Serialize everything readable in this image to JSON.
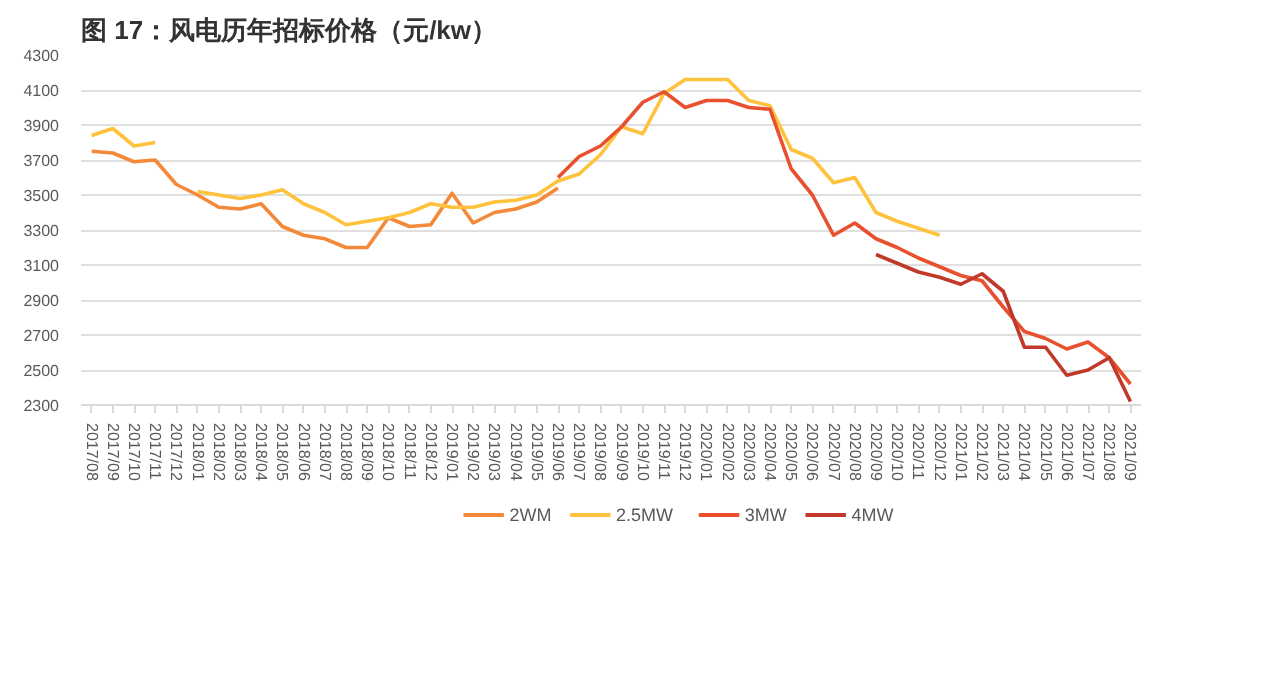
{
  "chart_data": {
    "type": "line",
    "title": "图 17：风电历年招标价格（元/kw）",
    "categories": [
      "2017/08",
      "2017/09",
      "2017/10",
      "2017/11",
      "2017/12",
      "2018/01",
      "2018/02",
      "2018/03",
      "2018/04",
      "2018/05",
      "2018/06",
      "2018/07",
      "2018/08",
      "2018/09",
      "2018/10",
      "2018/11",
      "2018/12",
      "2019/01",
      "2019/02",
      "2019/03",
      "2019/04",
      "2019/05",
      "2019/06",
      "2019/07",
      "2019/08",
      "2019/09",
      "2019/10",
      "2019/11",
      "2019/12",
      "2020/01",
      "2020/02",
      "2020/03",
      "2020/04",
      "2020/05",
      "2020/06",
      "2020/07",
      "2020/08",
      "2020/09",
      "2020/10",
      "2020/11",
      "2020/12",
      "2021/01",
      "2021/02",
      "2021/03",
      "2021/04",
      "2021/05",
      "2021/06",
      "2021/07",
      "2021/08",
      "2021/09"
    ],
    "series": [
      {
        "name": "2WM",
        "color": "#f4893a",
        "values": [
          3750,
          3740,
          3690,
          3700,
          3560,
          3500,
          3430,
          3420,
          3450,
          3320,
          3270,
          3250,
          3200,
          3200,
          3370,
          3320,
          3330,
          3510,
          3340,
          3400,
          3420,
          3460,
          3540,
          null,
          null,
          null,
          null,
          null,
          null,
          null,
          null,
          null,
          null,
          null,
          null,
          null,
          null,
          null,
          null,
          null,
          null,
          null,
          null,
          null,
          null,
          null,
          null,
          null,
          null,
          null
        ]
      },
      {
        "name": "2.5MW",
        "color": "#ffc23d",
        "values": [
          3840,
          3880,
          3780,
          3800,
          null,
          3520,
          3500,
          3480,
          3500,
          3530,
          3450,
          3400,
          3330,
          3350,
          3370,
          3400,
          3450,
          3430,
          3430,
          3460,
          3470,
          3500,
          3580,
          3620,
          3730,
          3890,
          3850,
          4080,
          4160,
          4160,
          4160,
          4040,
          4010,
          3760,
          3710,
          3570,
          3600,
          3400,
          3350,
          3310,
          3270,
          null,
          null,
          null,
          null,
          null,
          null,
          null,
          null,
          null
        ]
      },
      {
        "name": "3MW",
        "color": "#e8502e",
        "values": [
          null,
          null,
          null,
          null,
          null,
          null,
          null,
          null,
          null,
          null,
          null,
          null,
          null,
          null,
          null,
          null,
          null,
          null,
          null,
          null,
          null,
          null,
          3600,
          3720,
          3780,
          3890,
          4030,
          4090,
          4000,
          4040,
          4040,
          4000,
          3990,
          3650,
          3500,
          3270,
          3340,
          3250,
          3200,
          3140,
          3090,
          3040,
          3010,
          2860,
          2720,
          2680,
          2620,
          2660,
          2570,
          2420
        ]
      },
      {
        "name": "4MW",
        "color": "#c0392b",
        "values": [
          null,
          null,
          null,
          null,
          null,
          null,
          null,
          null,
          null,
          null,
          null,
          null,
          null,
          null,
          null,
          null,
          null,
          null,
          null,
          null,
          null,
          null,
          null,
          null,
          null,
          null,
          null,
          null,
          null,
          null,
          null,
          null,
          null,
          null,
          null,
          null,
          null,
          3160,
          3110,
          3060,
          3030,
          2990,
          3050,
          2950,
          2630,
          2630,
          2470,
          2500,
          2570,
          2320
        ]
      }
    ],
    "ylim": [
      2300,
      4300
    ],
    "yticks": [
      2300,
      2500,
      2700,
      2900,
      3100,
      3300,
      3500,
      3700,
      3900,
      4100,
      4300
    ],
    "grid": "y",
    "legend": "bottom",
    "marker": "none",
    "line_style": "solid"
  }
}
